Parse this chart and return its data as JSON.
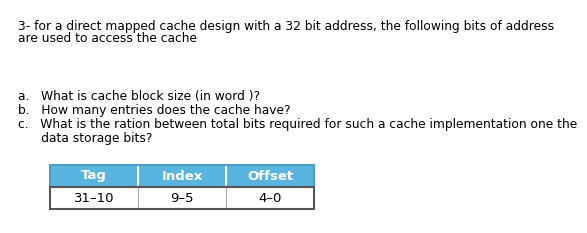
{
  "title_line1": "3- for a direct mapped cache design with a 32 bit address, the following bits of address",
  "title_line2": "are used to access the cache",
  "table_headers": [
    "Tag",
    "Index",
    "Offset"
  ],
  "table_values": [
    "31–10",
    "9–5",
    "4–0"
  ],
  "header_bg_color": "#5ab4e0",
  "header_text_color": "#ffffff",
  "cell_bg_color": "#ffffff",
  "cell_text_color": "#000000",
  "table_border_color": "#4a9fc8",
  "questions": [
    "a.   What is cache block size (in word )?",
    "b.   How many entries does the cache have?",
    "c.   What is the ration between total bits required for such a cache implementation one the",
    "      data storage bits?"
  ],
  "bg_color": "#ffffff",
  "title_fontsize": 8.8,
  "table_header_fontsize": 9.5,
  "table_val_fontsize": 9.5,
  "question_fontsize": 8.8
}
